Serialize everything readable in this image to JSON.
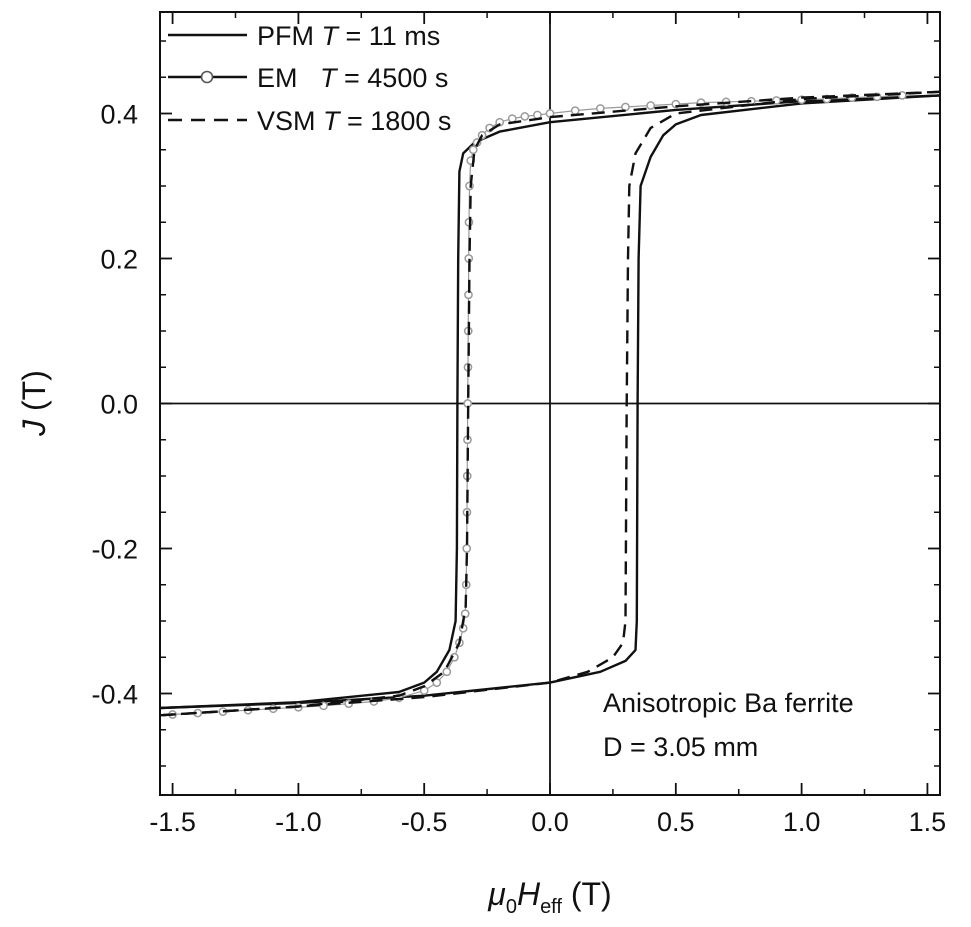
{
  "chart_data": {
    "type": "line",
    "title": "",
    "xlabel_parts": [
      "μ",
      "0",
      "H",
      "eff",
      " (T)"
    ],
    "ylabel_parts": [
      "J",
      " (T)"
    ],
    "xlim": [
      -1.55,
      1.55
    ],
    "ylim": [
      -0.54,
      0.54
    ],
    "x_ticks": [
      -1.5,
      -1.0,
      -0.5,
      0.0,
      0.5,
      1.0,
      1.5
    ],
    "x_tick_labels": [
      "-1.5",
      "-1.0",
      "-0.5",
      "0.0",
      "0.5",
      "1.0",
      "1.5"
    ],
    "y_ticks": [
      -0.4,
      -0.2,
      0.0,
      0.2,
      0.4
    ],
    "y_tick_labels": [
      "-0.4",
      "-0.2",
      "0.0",
      "0.2",
      "0.4"
    ],
    "zero_lines": true,
    "grid": false,
    "legend_position": "top-left",
    "annotation": {
      "line1": "Anisotropic Ba ferrite",
      "line2": "D = 3.05 mm"
    },
    "series": [
      {
        "name": "PFM",
        "legend_label": {
          "name": "PFM ",
          "T": "T",
          "rest": " = 11 ms"
        },
        "style": "solid",
        "color": "#111111",
        "descending": [
          [
            1.55,
            0.425
          ],
          [
            1.0,
            0.417
          ],
          [
            0.5,
            0.405
          ],
          [
            0.0,
            0.388
          ],
          [
            -0.2,
            0.375
          ],
          [
            -0.3,
            0.36
          ],
          [
            -0.345,
            0.345
          ],
          [
            -0.36,
            0.32
          ],
          [
            -0.365,
            0.2
          ],
          [
            -0.368,
            0.0
          ],
          [
            -0.37,
            -0.2
          ],
          [
            -0.375,
            -0.3
          ],
          [
            -0.4,
            -0.34
          ],
          [
            -0.45,
            -0.37
          ],
          [
            -0.5,
            -0.385
          ],
          [
            -0.6,
            -0.398
          ],
          [
            -1.0,
            -0.412
          ],
          [
            -1.55,
            -0.42
          ]
        ],
        "ascending": [
          [
            -1.55,
            -0.42
          ],
          [
            -1.0,
            -0.413
          ],
          [
            -0.5,
            -0.403
          ],
          [
            0.0,
            -0.385
          ],
          [
            0.2,
            -0.37
          ],
          [
            0.3,
            -0.355
          ],
          [
            0.34,
            -0.34
          ],
          [
            0.345,
            -0.3
          ],
          [
            0.348,
            0.0
          ],
          [
            0.352,
            0.2
          ],
          [
            0.36,
            0.3
          ],
          [
            0.4,
            0.34
          ],
          [
            0.45,
            0.37
          ],
          [
            0.5,
            0.385
          ],
          [
            0.6,
            0.398
          ],
          [
            1.0,
            0.414
          ],
          [
            1.55,
            0.425
          ]
        ]
      },
      {
        "name": "EM",
        "legend_label": {
          "name": "EM   ",
          "T": "T",
          "rest": " = 4500 s"
        },
        "style": "solid-circles",
        "color": "#9a9a9a",
        "points": [
          [
            1.4,
            0.425
          ],
          [
            1.3,
            0.423
          ],
          [
            1.2,
            0.422
          ],
          [
            1.1,
            0.42
          ],
          [
            1.0,
            0.419
          ],
          [
            0.9,
            0.418
          ],
          [
            0.8,
            0.417
          ],
          [
            0.7,
            0.416
          ],
          [
            0.6,
            0.415
          ],
          [
            0.5,
            0.413
          ],
          [
            0.4,
            0.411
          ],
          [
            0.3,
            0.409
          ],
          [
            0.2,
            0.407
          ],
          [
            0.1,
            0.404
          ],
          [
            0.0,
            0.4
          ],
          [
            -0.05,
            0.398
          ],
          [
            -0.1,
            0.396
          ],
          [
            -0.15,
            0.393
          ],
          [
            -0.2,
            0.388
          ],
          [
            -0.24,
            0.38
          ],
          [
            -0.27,
            0.37
          ],
          [
            -0.29,
            0.36
          ],
          [
            -0.305,
            0.35
          ],
          [
            -0.315,
            0.335
          ],
          [
            -0.32,
            0.3
          ],
          [
            -0.322,
            0.25
          ],
          [
            -0.323,
            0.2
          ],
          [
            -0.324,
            0.15
          ],
          [
            -0.325,
            0.1
          ],
          [
            -0.326,
            0.05
          ],
          [
            -0.327,
            0.0
          ],
          [
            -0.328,
            -0.05
          ],
          [
            -0.329,
            -0.1
          ],
          [
            -0.33,
            -0.15
          ],
          [
            -0.331,
            -0.2
          ],
          [
            -0.333,
            -0.25
          ],
          [
            -0.337,
            -0.29
          ],
          [
            -0.345,
            -0.31
          ],
          [
            -0.36,
            -0.33
          ],
          [
            -0.38,
            -0.35
          ],
          [
            -0.41,
            -0.37
          ],
          [
            -0.45,
            -0.385
          ],
          [
            -0.5,
            -0.396
          ],
          [
            -0.6,
            -0.406
          ],
          [
            -0.7,
            -0.411
          ],
          [
            -0.8,
            -0.414
          ],
          [
            -0.9,
            -0.417
          ],
          [
            -1.0,
            -0.419
          ],
          [
            -1.1,
            -0.421
          ],
          [
            -1.2,
            -0.423
          ],
          [
            -1.3,
            -0.425
          ],
          [
            -1.4,
            -0.427
          ],
          [
            -1.5,
            -0.429
          ]
        ]
      },
      {
        "name": "VSM",
        "legend_label": {
          "name": "VSM ",
          "T": "T",
          "rest": " = 1800 s"
        },
        "style": "dashed",
        "color": "#111111",
        "descending": [
          [
            1.55,
            0.43
          ],
          [
            1.0,
            0.422
          ],
          [
            0.5,
            0.41
          ],
          [
            0.0,
            0.395
          ],
          [
            -0.2,
            0.385
          ],
          [
            -0.27,
            0.37
          ],
          [
            -0.3,
            0.35
          ],
          [
            -0.315,
            0.3
          ],
          [
            -0.32,
            0.2
          ],
          [
            -0.325,
            0.0
          ],
          [
            -0.33,
            -0.2
          ],
          [
            -0.335,
            -0.28
          ],
          [
            -0.36,
            -0.33
          ],
          [
            -0.42,
            -0.37
          ],
          [
            -0.5,
            -0.39
          ],
          [
            -0.6,
            -0.403
          ],
          [
            -1.0,
            -0.418
          ],
          [
            -1.55,
            -0.43
          ]
        ],
        "ascending": [
          [
            -1.55,
            -0.43
          ],
          [
            -1.0,
            -0.418
          ],
          [
            -0.5,
            -0.405
          ],
          [
            0.0,
            -0.385
          ],
          [
            0.15,
            -0.37
          ],
          [
            0.25,
            -0.35
          ],
          [
            0.29,
            -0.33
          ],
          [
            0.3,
            -0.3
          ],
          [
            0.305,
            0.0
          ],
          [
            0.31,
            0.2
          ],
          [
            0.315,
            0.3
          ],
          [
            0.34,
            0.345
          ],
          [
            0.4,
            0.38
          ],
          [
            0.5,
            0.4
          ],
          [
            1.0,
            0.42
          ],
          [
            1.55,
            0.43
          ]
        ]
      }
    ]
  }
}
